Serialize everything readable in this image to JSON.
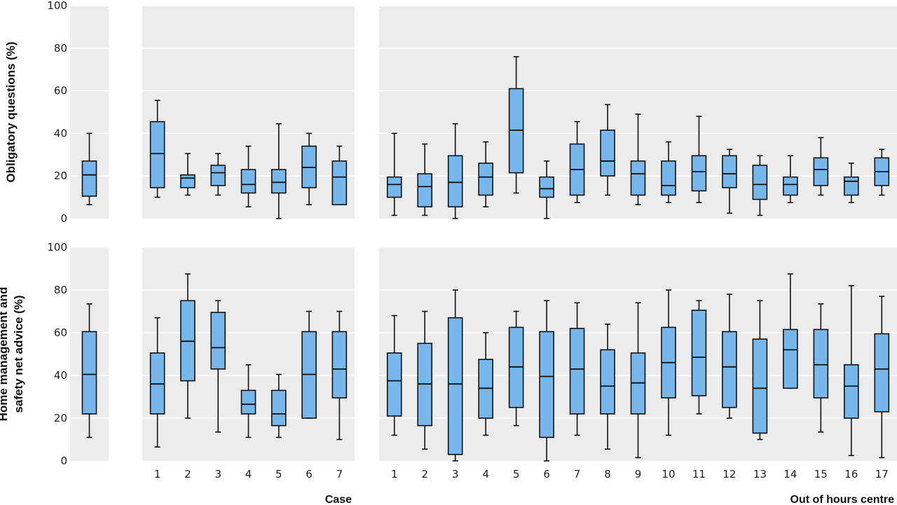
{
  "chart_data": {
    "type": "boxplot",
    "colors": {
      "panel_bg": "#ececec",
      "grid": "#ffffff",
      "box_fill": "#78b7ec",
      "box_stroke": "#111111"
    },
    "grid": true,
    "groups": [
      {
        "id": "overall",
        "xlabel": "",
        "categories": [
          ""
        ]
      },
      {
        "id": "case",
        "xlabel": "Case",
        "categories": [
          "1",
          "2",
          "3",
          "4",
          "5",
          "6",
          "7"
        ]
      },
      {
        "id": "centre",
        "xlabel": "Out of hours centre",
        "categories": [
          "1",
          "2",
          "3",
          "4",
          "5",
          "6",
          "7",
          "8",
          "9",
          "10",
          "11",
          "12",
          "13",
          "14",
          "15",
          "16",
          "17"
        ]
      }
    ],
    "rows": [
      {
        "ylabel": [
          "Obligatory questions (%)"
        ],
        "ylim": [
          0,
          100
        ],
        "yticks": [
          0,
          20,
          40,
          60,
          80,
          100
        ],
        "boxes": {
          "overall": [
            [
              6.5,
              10.5,
              20.5,
              27,
              40
            ]
          ],
          "case": [
            [
              10,
              14.5,
              30.5,
              45.5,
              55.5
            ],
            [
              11,
              14.5,
              19,
              20.5,
              30.5
            ],
            [
              11,
              15.5,
              21.5,
              25,
              30.5
            ],
            [
              5.5,
              12,
              16,
              23,
              34
            ],
            [
              0,
              12,
              17,
              23,
              44.5
            ],
            [
              6.5,
              14.5,
              24,
              34,
              40
            ],
            [
              6.5,
              6.5,
              19.5,
              27,
              34
            ]
          ],
          "centre": [
            [
              1.5,
              10,
              16,
              19.5,
              40
            ],
            [
              1.5,
              5.5,
              15,
              21,
              35
            ],
            [
              0,
              5.5,
              17,
              29.5,
              44.5
            ],
            [
              5.5,
              11,
              19.5,
              26,
              36
            ],
            [
              12,
              21.5,
              41.5,
              61,
              76
            ],
            [
              0,
              10,
              14,
              19.5,
              27
            ],
            [
              7.5,
              11,
              23,
              35,
              45.5
            ],
            [
              11,
              20,
              27,
              41.5,
              53.5
            ],
            [
              6.5,
              11,
              21,
              27,
              49
            ],
            [
              7.5,
              11,
              15.5,
              27,
              36
            ],
            [
              7.5,
              13,
              22,
              29.5,
              48
            ],
            [
              2.5,
              14.5,
              21,
              29.5,
              32.5
            ],
            [
              1.5,
              9,
              16,
              25,
              29.5
            ],
            [
              7.5,
              11,
              16,
              19.5,
              29.5
            ],
            [
              11,
              15.5,
              23,
              28.5,
              38
            ],
            [
              7.5,
              11,
              17.5,
              19.5,
              26
            ],
            [
              11,
              15.5,
              22,
              28.5,
              32.5
            ]
          ]
        }
      },
      {
        "ylabel": [
          "Home management and",
          "safety net advice (%)"
        ],
        "ylim": [
          0,
          100
        ],
        "yticks": [
          0,
          20,
          40,
          60,
          80,
          100
        ],
        "boxes": {
          "overall": [
            [
              11,
              22,
              40.5,
              60.5,
              73.5
            ]
          ],
          "case": [
            [
              6.5,
              22,
              36,
              50.5,
              67
            ],
            [
              20,
              37.5,
              56,
              75,
              87.5
            ],
            [
              13.5,
              43,
              53,
              69.5,
              75
            ],
            [
              11,
              22,
              26.5,
              33,
              45
            ],
            [
              11,
              16.5,
              22,
              33,
              40.5
            ],
            [
              20,
              20,
              40.5,
              60.5,
              70
            ],
            [
              10,
              29.5,
              43,
              60.5,
              70
            ]
          ],
          "centre": [
            [
              12,
              21,
              37.5,
              50.5,
              68
            ],
            [
              5.5,
              16.5,
              36,
              55,
              70
            ],
            [
              0,
              3,
              36,
              67,
              80
            ],
            [
              12,
              20,
              34,
              47.5,
              60
            ],
            [
              16.5,
              25,
              44,
              62.5,
              70
            ],
            [
              0,
              11,
              39.5,
              60.5,
              75
            ],
            [
              12,
              22,
              43,
              62,
              74
            ],
            [
              5.5,
              22,
              35,
              52,
              64
            ],
            [
              1.5,
              22,
              36.5,
              50.5,
              74
            ],
            [
              12,
              29.5,
              46,
              62.5,
              80
            ],
            [
              22,
              30.5,
              48.5,
              70.5,
              75
            ],
            [
              20,
              25,
              44,
              60.5,
              78
            ],
            [
              10,
              13,
              34,
              57,
              75
            ],
            [
              34,
              34,
              52,
              61.5,
              87.5
            ],
            [
              13.5,
              29.5,
              45,
              61.5,
              73.5
            ],
            [
              2.5,
              20,
              35,
              45,
              82
            ],
            [
              1.5,
              23,
              43,
              59.5,
              77
            ]
          ]
        }
      }
    ]
  }
}
